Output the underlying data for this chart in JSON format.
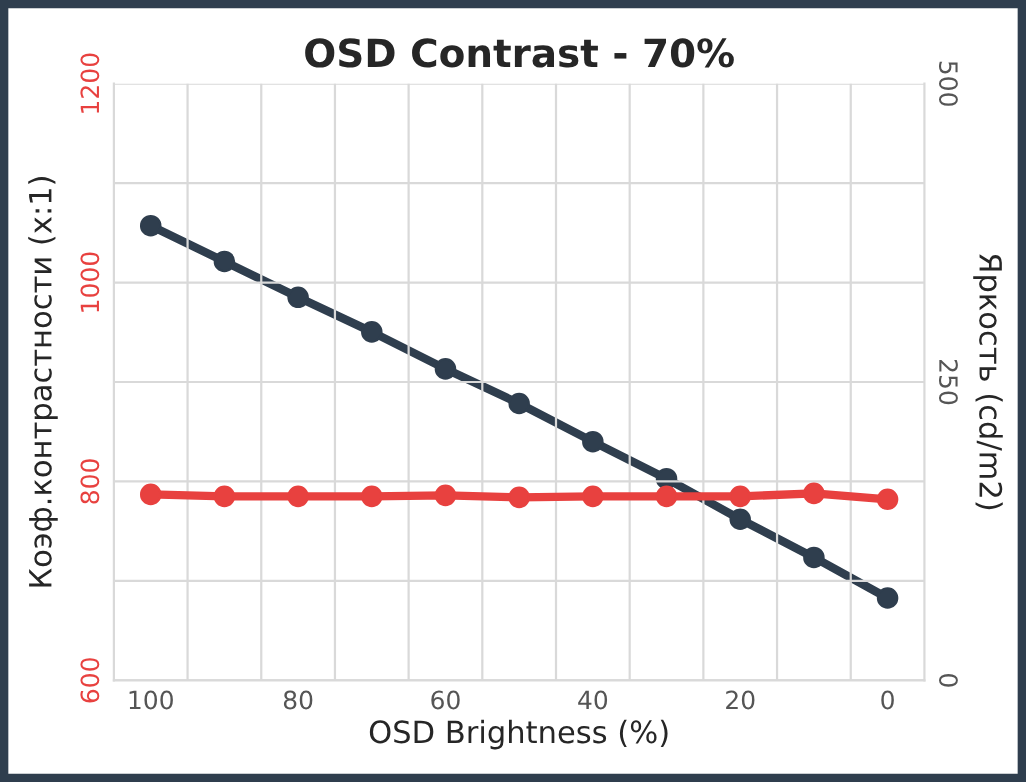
{
  "chart_data": {
    "type": "line",
    "title": "OSD Contrast - 70%",
    "xlabel": "OSD Brightness (%)",
    "ylabel": "Коэф.контрастности (x:1)",
    "y2label": "Яркость (cd/m2)",
    "categories": [
      "100",
      null,
      "80",
      null,
      "60",
      null,
      "40",
      null,
      "20",
      null,
      "0"
    ],
    "series": [
      {
        "color": "#e8413f",
        "values": [
          787,
          785,
          785,
          785,
          786,
          784,
          785,
          785,
          785,
          788,
          782
        ]
      },
      {
        "color": "#2f3e4e",
        "axis": "y2",
        "values": [
          381,
          351,
          321,
          292,
          261,
          232,
          200,
          169,
          135,
          103,
          69
        ]
      }
    ],
    "ylim": [
      600,
      1200
    ],
    "yticks": [
      600,
      {
        "value": 700,
        "label": null
      },
      800,
      {
        "value": 900,
        "label": null
      },
      1000,
      {
        "value": 1100,
        "label": null
      },
      1200
    ],
    "y2lim": [
      0,
      500
    ],
    "y2ticks": [
      0,
      250,
      500
    ],
    "grid": true,
    "marker": "circle",
    "line_style": "solid"
  }
}
